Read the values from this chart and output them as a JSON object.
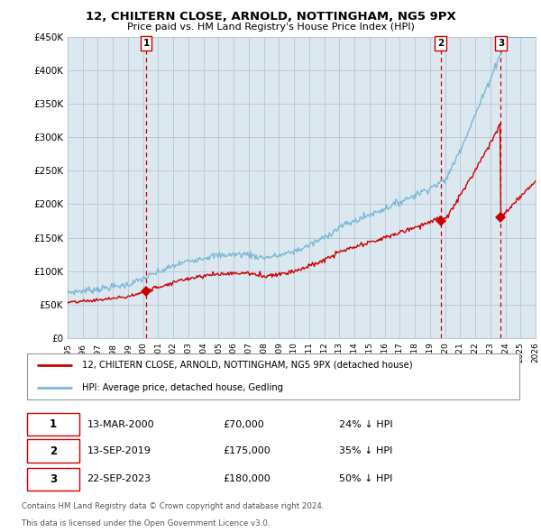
{
  "title": "12, CHILTERN CLOSE, ARNOLD, NOTTINGHAM, NG5 9PX",
  "subtitle": "Price paid vs. HM Land Registry's House Price Index (HPI)",
  "hpi_label": "HPI: Average price, detached house, Gedling",
  "property_label": "12, CHILTERN CLOSE, ARNOLD, NOTTINGHAM, NG5 9PX (detached house)",
  "ylim": [
    0,
    450000
  ],
  "yticks": [
    0,
    50000,
    100000,
    150000,
    200000,
    250000,
    300000,
    350000,
    400000,
    450000
  ],
  "ytick_labels": [
    "£0",
    "£50K",
    "£100K",
    "£150K",
    "£200K",
    "£250K",
    "£300K",
    "£350K",
    "£400K",
    "£450K"
  ],
  "x_start_year": 1995,
  "x_end_year": 2026,
  "hpi_color": "#7bb8d4",
  "property_color": "#cc0000",
  "vline_color": "#cc0000",
  "grid_color": "#c0c8d8",
  "chart_bg": "#dce8f0",
  "background_color": "#ffffff",
  "transactions": [
    {
      "year": 2000.2,
      "price": 70000,
      "label": "1",
      "date_str": "13-MAR-2000",
      "price_str": "£70,000",
      "hpi_str": "24% ↓ HPI"
    },
    {
      "year": 2019.7,
      "price": 175000,
      "label": "2",
      "date_str": "13-SEP-2019",
      "price_str": "£175,000",
      "hpi_str": "35% ↓ HPI"
    },
    {
      "year": 2023.7,
      "price": 180000,
      "label": "3",
      "date_str": "22-SEP-2023",
      "price_str": "£180,000",
      "hpi_str": "50% ↓ HPI"
    }
  ],
  "footer_line1": "Contains HM Land Registry data © Crown copyright and database right 2024.",
  "footer_line2": "This data is licensed under the Open Government Licence v3.0."
}
